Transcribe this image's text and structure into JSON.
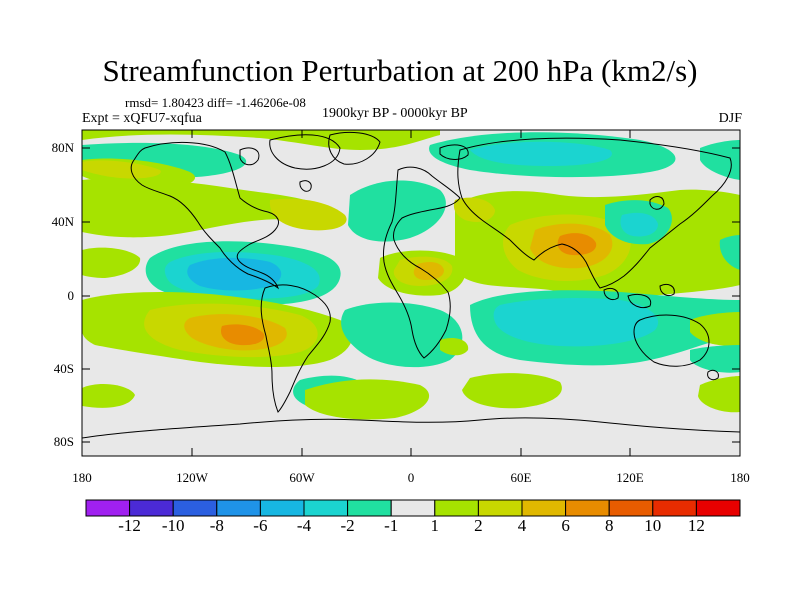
{
  "title": "Streamfunction Perturbation at 200 hPa (km2/s)",
  "stats": "rmsd= 1.80423  diff= -1.46206e-08",
  "experiment": "Expt = xQFU7-xqfua",
  "period": "1900kyr BP - 0000kyr BP",
  "season": "DJF",
  "lat_labels": [
    "80N",
    "40N",
    "0",
    "40S",
    "80S"
  ],
  "lon_labels": [
    "180",
    "120W",
    "60W",
    "0",
    "60E",
    "120E",
    "180"
  ],
  "colorbar": {
    "labels": [
      "-12",
      "-10",
      "-8",
      "-6",
      "-4",
      "-2",
      "-1",
      "1",
      "2",
      "4",
      "6",
      "8",
      "10",
      "12"
    ],
    "colors": [
      "#a020f0",
      "#4b2ad6",
      "#2b5fe0",
      "#1f93e8",
      "#17b7e2",
      "#1bd4d0",
      "#20e0a0",
      "#e8e8e8",
      "#a6e300",
      "#c8d800",
      "#e0b800",
      "#e88c00",
      "#e85c00",
      "#e82c00",
      "#e80000"
    ]
  },
  "fill_colors": {
    "neutral": "#e8e8e8",
    "pos1": "#a6e300",
    "pos2": "#c8d800",
    "pos3": "#e0b800",
    "pos4": "#e88c00",
    "neg1": "#20e0a0",
    "neg2": "#1bd4d0",
    "neg3": "#17b7e2",
    "neg4": "#1f93e8"
  }
}
